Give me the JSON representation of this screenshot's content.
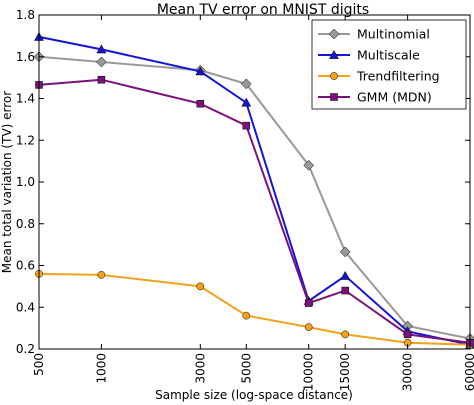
{
  "chart_data": {
    "type": "line",
    "title": "Mean TV error on MNIST digits",
    "xlabel": "Sample size (log-space distance)",
    "ylabel": "Mean total variation (TV) error",
    "x": [
      500,
      1000,
      3000,
      5000,
      10000,
      15000,
      30000,
      60000
    ],
    "x_scale": "log",
    "x_tick_labels": [
      "500",
      "1000",
      "3000",
      "5000",
      "10000",
      "15000",
      "30000",
      "60000"
    ],
    "ylim": [
      0.2,
      1.8
    ],
    "y_ticks": [
      0.2,
      0.4,
      0.6,
      0.8,
      1.0,
      1.2,
      1.4,
      1.6,
      1.8
    ],
    "y_tick_labels": [
      "0.2",
      "0.4",
      "0.6",
      "0.8",
      "1.0",
      "1.2",
      "1.4",
      "1.6",
      "1.8"
    ],
    "grid": false,
    "legend_position": "top-right",
    "series": [
      {
        "name": "Multinomial",
        "color": "#999999",
        "marker": "diamond",
        "values": [
          1.6,
          1.575,
          1.535,
          1.47,
          1.08,
          0.665,
          0.31,
          0.25
        ]
      },
      {
        "name": "Multiscale",
        "color": "#1515d8",
        "marker": "triangle",
        "values": [
          1.695,
          1.635,
          1.53,
          1.38,
          0.43,
          0.55,
          0.285,
          0.22
        ]
      },
      {
        "name": "Trendfiltering",
        "color": "#f5a21b",
        "marker": "circle",
        "values": [
          0.56,
          0.555,
          0.5,
          0.36,
          0.305,
          0.27,
          0.23,
          0.22
        ]
      },
      {
        "name": "GMM (MDN)",
        "color": "#7b117b",
        "marker": "square",
        "values": [
          1.465,
          1.49,
          1.375,
          1.27,
          0.42,
          0.48,
          0.27,
          0.23
        ]
      }
    ]
  }
}
